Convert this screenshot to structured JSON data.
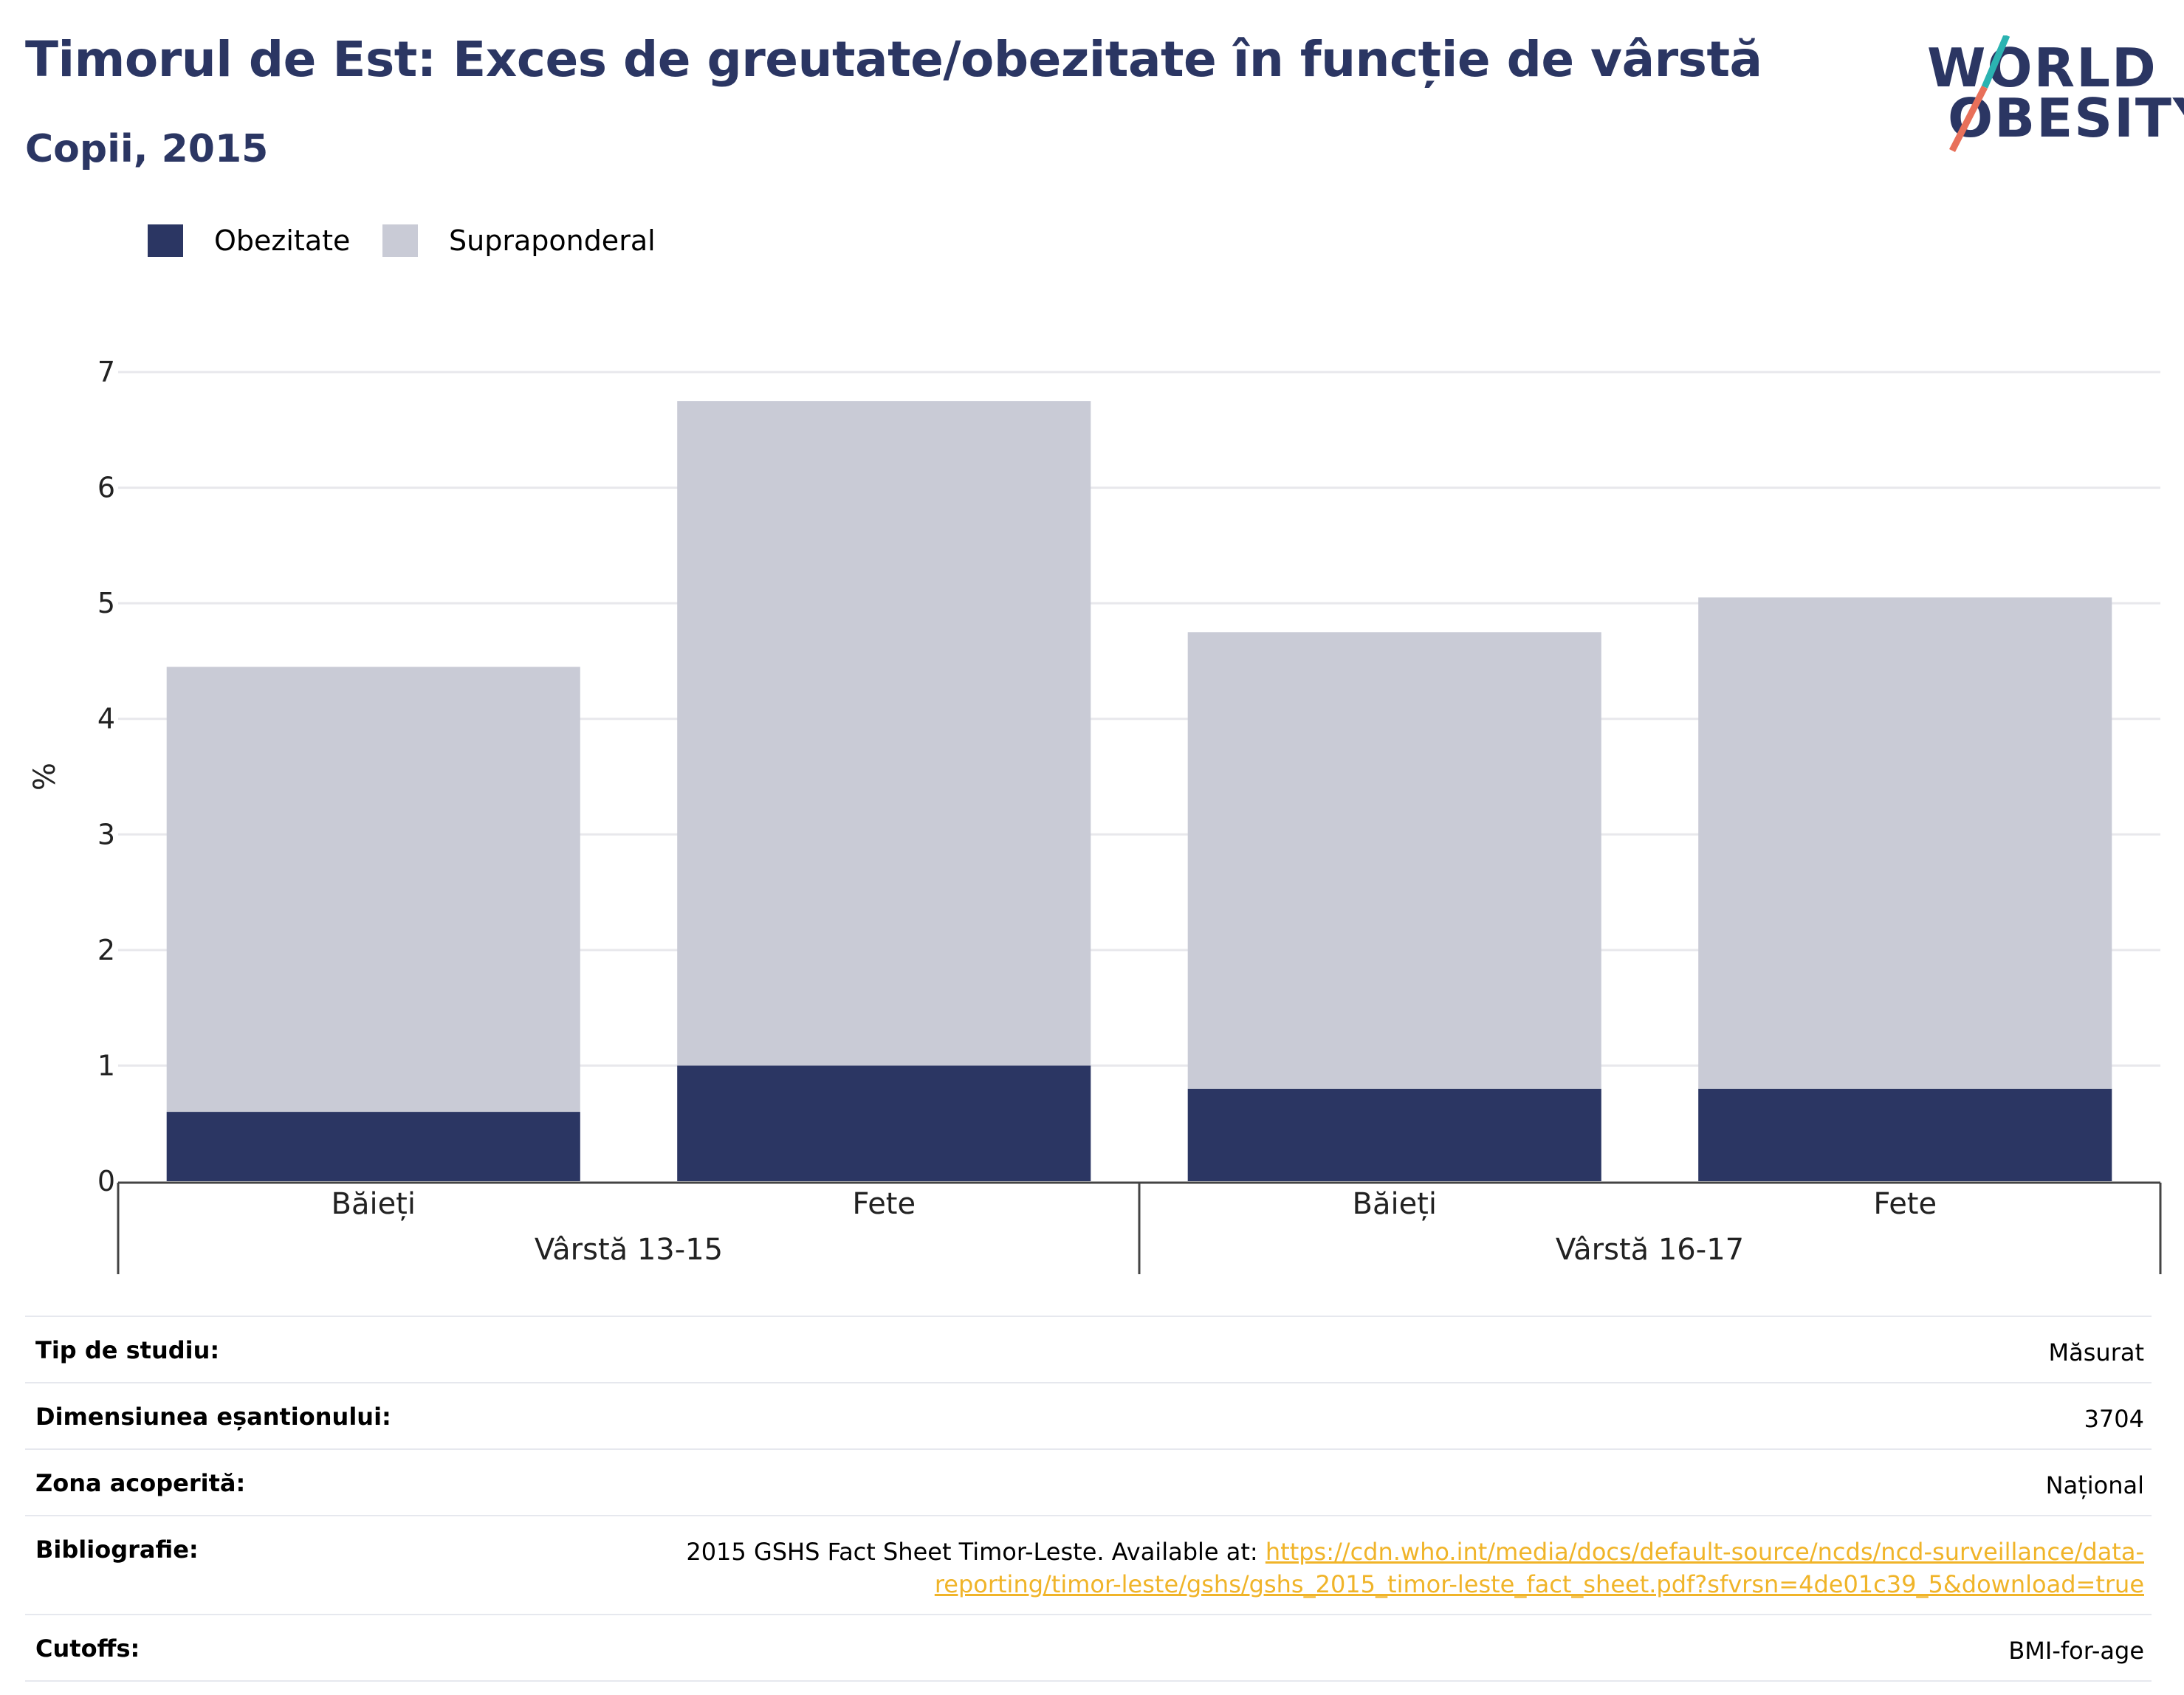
{
  "header": {
    "title": "Timorul de Est: Exces de greutate/obezitate în funcție de vârstă",
    "subtitle": "Copii, 2015"
  },
  "logo": {
    "line1": "WORLD",
    "line2": "OBESITY",
    "colors": {
      "text": "#2b3663",
      "accent_top": "#2bb3b1",
      "accent_bottom": "#e8705a"
    }
  },
  "legend": [
    {
      "label": "Obezitate",
      "color": "#2b3663"
    },
    {
      "label": "Supraponderal",
      "color": "#c9cbd6"
    }
  ],
  "chart_data": {
    "type": "bar",
    "stacked": true,
    "ylabel": "%",
    "ylim": [
      0,
      7
    ],
    "yticks": [
      0,
      1,
      2,
      3,
      4,
      5,
      6,
      7
    ],
    "grid": true,
    "categories": [
      "Băieți",
      "Fete",
      "Băieți",
      "Fete"
    ],
    "groups": [
      {
        "label": "Vârstă 13-15",
        "categories": [
          "Băieți",
          "Fete"
        ]
      },
      {
        "label": "Vârstă 16-17",
        "categories": [
          "Băieți",
          "Fete"
        ]
      }
    ],
    "series": [
      {
        "name": "Obezitate",
        "color": "#2b3663",
        "values": [
          0.6,
          1.0,
          0.8,
          0.8
        ]
      },
      {
        "name": "Supraponderal",
        "color": "#c9cbd6",
        "values": [
          3.85,
          5.75,
          3.95,
          4.25
        ]
      }
    ]
  },
  "metadata": {
    "study_type": {
      "label": "Tip de studiu:",
      "value": "Măsurat"
    },
    "sample_size": {
      "label": "Dimensiunea eșantionului:",
      "value": "3704"
    },
    "coverage": {
      "label": "Zona acoperită:",
      "value": "Național"
    },
    "bibliography": {
      "label": "Bibliografie:",
      "text": "2015 GSHS Fact Sheet Timor-Leste. Available at: ",
      "link_line1": "https://cdn.who.int/media/docs/default-source/ncds/ncd-surveillance/data-",
      "link_line2": "reporting/timor-leste/gshs/gshs_2015_timor-leste_fact_sheet.pdf?sfvrsn=4de01c39_5&download=true"
    },
    "cutoffs": {
      "label": "Cutoffs:",
      "value": "BMI-for-age"
    }
  }
}
